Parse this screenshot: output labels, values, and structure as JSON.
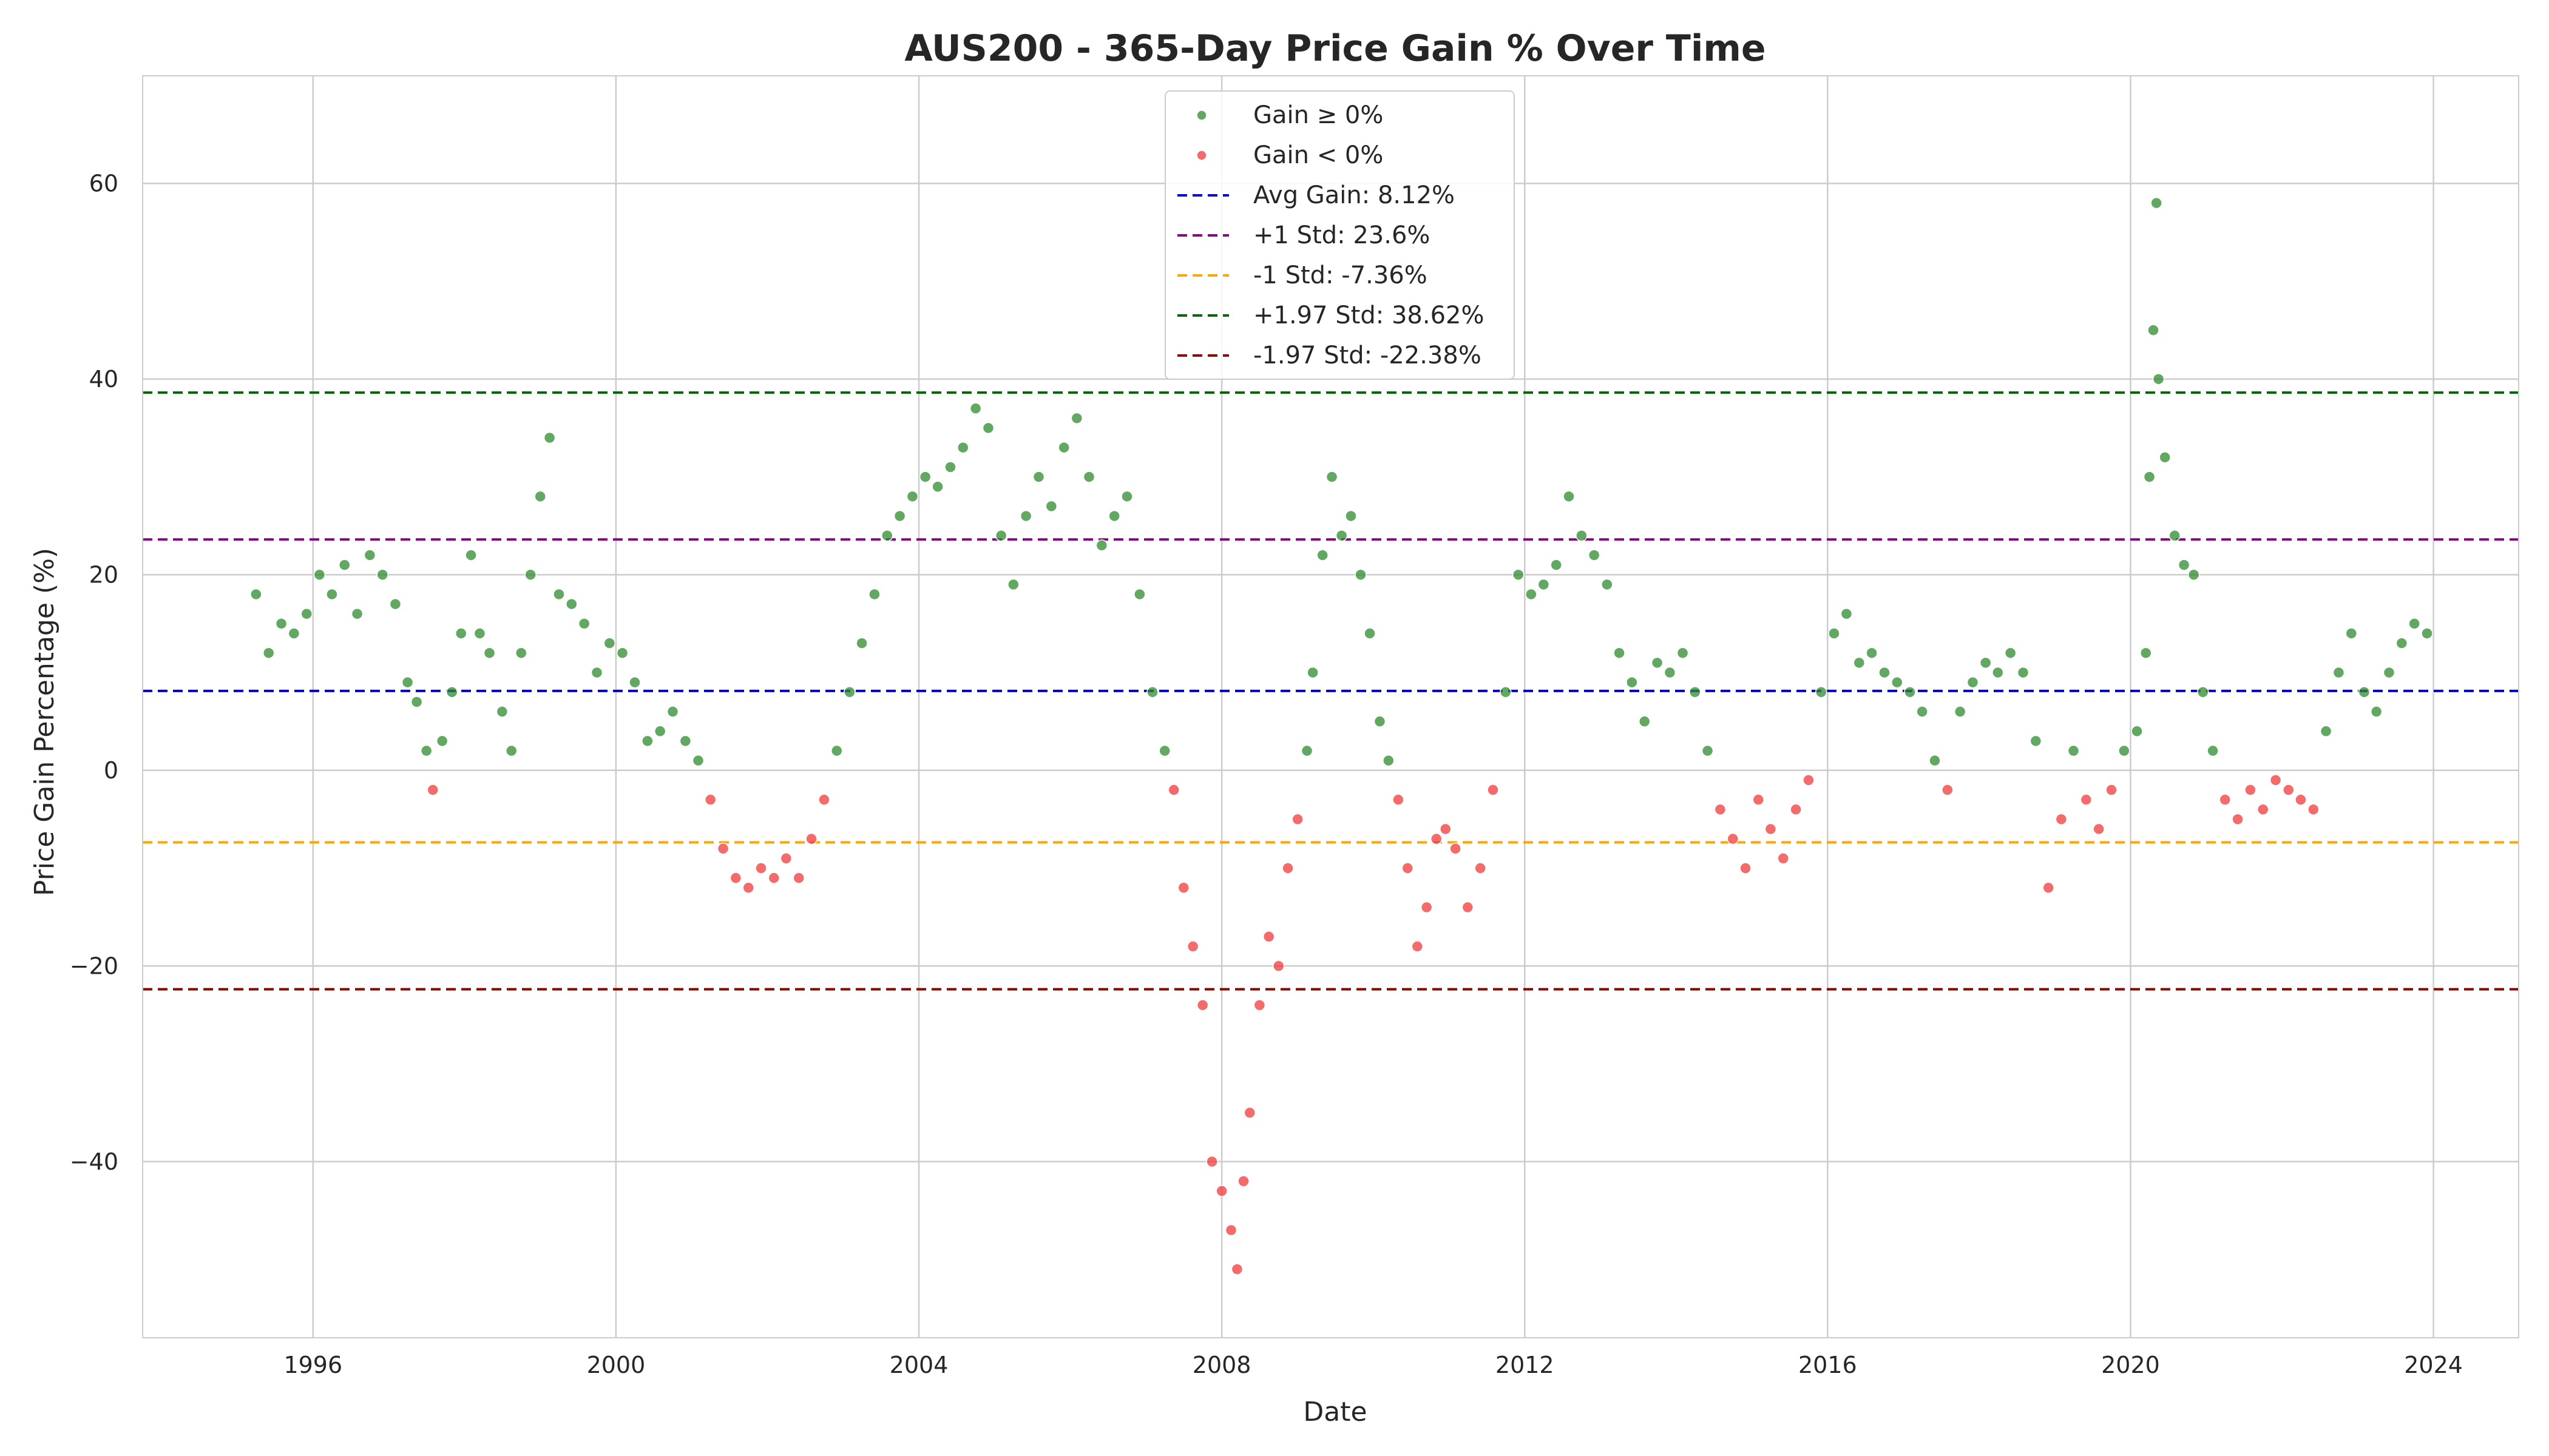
{
  "chart_data": {
    "type": "scatter",
    "title": "AUS200 - 365-Day Price Gain % Over Time",
    "xlabel": "Date",
    "ylabel": "Price Gain Percentage (%)",
    "xlim": [
      "1993-10-01",
      "2025-02-15"
    ],
    "ylim": [
      -58,
      71
    ],
    "x_ticks": [
      "1996",
      "2000",
      "2004",
      "2008",
      "2012",
      "2016",
      "2020",
      "2024"
    ],
    "y_ticks": [
      -40,
      -20,
      0,
      20,
      40,
      60
    ],
    "grid": true,
    "legend_position": "top-center",
    "series": [
      {
        "name": "Gain ≥ 0%",
        "color": "#2e8b2e",
        "marker": "point",
        "condition": "gain >= 0"
      },
      {
        "name": "Gain < 0%",
        "color": "#f03a3a",
        "marker": "point",
        "condition": "gain < 0"
      }
    ],
    "reference_lines": [
      {
        "name": "Avg Gain: 8.12%",
        "value": 8.12,
        "color": "#0000cc",
        "style": "dashed"
      },
      {
        "name": "+1 Std: 23.6%",
        "value": 23.6,
        "color": "#800080",
        "style": "dashed"
      },
      {
        "name": "-1 Std: -7.36%",
        "value": -7.36,
        "color": "#ffa500",
        "style": "dashed"
      },
      {
        "name": "+1.97 Std: 38.62%",
        "value": 38.62,
        "color": "#006400",
        "style": "dashed"
      },
      {
        "name": "-1.97 Std: -22.38%",
        "value": -22.38,
        "color": "#8b0000",
        "style": "dashed"
      }
    ],
    "data": [
      [
        "1995-04-01",
        18
      ],
      [
        "1995-06-01",
        12
      ],
      [
        "1995-08-01",
        15
      ],
      [
        "1995-10-01",
        14
      ],
      [
        "1995-12-01",
        16
      ],
      [
        "1996-02-01",
        20
      ],
      [
        "1996-04-01",
        18
      ],
      [
        "1996-06-01",
        21
      ],
      [
        "1996-08-01",
        16
      ],
      [
        "1996-10-01",
        22
      ],
      [
        "1996-12-01",
        20
      ],
      [
        "1997-02-01",
        17
      ],
      [
        "1997-04-01",
        9
      ],
      [
        "1997-05-15",
        7
      ],
      [
        "1997-07-01",
        2
      ],
      [
        "1997-08-01",
        -2
      ],
      [
        "1997-09-15",
        3
      ],
      [
        "1997-11-01",
        8
      ],
      [
        "1997-12-15",
        14
      ],
      [
        "1998-02-01",
        22
      ],
      [
        "1998-03-15",
        14
      ],
      [
        "1998-05-01",
        12
      ],
      [
        "1998-07-01",
        6
      ],
      [
        "1998-08-15",
        2
      ],
      [
        "1998-10-01",
        12
      ],
      [
        "1998-11-15",
        20
      ],
      [
        "1999-01-01",
        28
      ],
      [
        "1999-02-15",
        34
      ],
      [
        "1999-04-01",
        18
      ],
      [
        "1999-06-01",
        17
      ],
      [
        "1999-08-01",
        15
      ],
      [
        "1999-10-01",
        10
      ],
      [
        "1999-12-01",
        13
      ],
      [
        "2000-02-01",
        12
      ],
      [
        "2000-04-01",
        9
      ],
      [
        "2000-06-01",
        3
      ],
      [
        "2000-08-01",
        4
      ],
      [
        "2000-10-01",
        6
      ],
      [
        "2000-12-01",
        3
      ],
      [
        "2001-02-01",
        1
      ],
      [
        "2001-04-01",
        -3
      ],
      [
        "2001-06-01",
        -8
      ],
      [
        "2001-08-01",
        -11
      ],
      [
        "2001-10-01",
        -12
      ],
      [
        "2001-12-01",
        -10
      ],
      [
        "2002-02-01",
        -11
      ],
      [
        "2002-04-01",
        -9
      ],
      [
        "2002-06-01",
        -11
      ],
      [
        "2002-08-01",
        -7
      ],
      [
        "2002-10-01",
        -3
      ],
      [
        "2002-12-01",
        2
      ],
      [
        "2003-02-01",
        8
      ],
      [
        "2003-04-01",
        13
      ],
      [
        "2003-06-01",
        18
      ],
      [
        "2003-08-01",
        24
      ],
      [
        "2003-10-01",
        26
      ],
      [
        "2003-12-01",
        28
      ],
      [
        "2004-02-01",
        30
      ],
      [
        "2004-04-01",
        29
      ],
      [
        "2004-06-01",
        31
      ],
      [
        "2004-08-01",
        33
      ],
      [
        "2004-10-01",
        37
      ],
      [
        "2004-12-01",
        35
      ],
      [
        "2005-02-01",
        24
      ],
      [
        "2005-04-01",
        19
      ],
      [
        "2005-06-01",
        26
      ],
      [
        "2005-08-01",
        30
      ],
      [
        "2005-10-01",
        27
      ],
      [
        "2005-12-01",
        33
      ],
      [
        "2006-02-01",
        36
      ],
      [
        "2006-04-01",
        30
      ],
      [
        "2006-06-01",
        23
      ],
      [
        "2006-08-01",
        26
      ],
      [
        "2006-10-01",
        28
      ],
      [
        "2006-12-01",
        18
      ],
      [
        "2007-02-01",
        8
      ],
      [
        "2007-04-01",
        2
      ],
      [
        "2007-05-15",
        -2
      ],
      [
        "2007-07-01",
        -12
      ],
      [
        "2007-08-15",
        -18
      ],
      [
        "2007-10-01",
        -24
      ],
      [
        "2007-11-15",
        -40
      ],
      [
        "2008-01-01",
        -43
      ],
      [
        "2008-02-15",
        -47
      ],
      [
        "2008-03-15",
        -51
      ],
      [
        "2008-04-15",
        -42
      ],
      [
        "2008-05-15",
        -35
      ],
      [
        "2008-07-01",
        -24
      ],
      [
        "2008-08-15",
        -17
      ],
      [
        "2008-10-01",
        -20
      ],
      [
        "2008-11-15",
        -10
      ],
      [
        "2009-01-01",
        -5
      ],
      [
        "2009-02-15",
        2
      ],
      [
        "2009-03-15",
        10
      ],
      [
        "2009-05-01",
        22
      ],
      [
        "2009-06-15",
        30
      ],
      [
        "2009-08-01",
        24
      ],
      [
        "2009-09-15",
        26
      ],
      [
        "2009-11-01",
        20
      ],
      [
        "2009-12-15",
        14
      ],
      [
        "2010-02-01",
        5
      ],
      [
        "2010-03-15",
        1
      ],
      [
        "2010-05-01",
        -3
      ],
      [
        "2010-06-15",
        -10
      ],
      [
        "2010-08-01",
        -18
      ],
      [
        "2010-09-15",
        -14
      ],
      [
        "2010-11-01",
        -7
      ],
      [
        "2010-12-15",
        -6
      ],
      [
        "2011-02-01",
        -8
      ],
      [
        "2011-04-01",
        -14
      ],
      [
        "2011-06-01",
        -10
      ],
      [
        "2011-08-01",
        -2
      ],
      [
        "2011-10-01",
        8
      ],
      [
        "2011-12-01",
        20
      ],
      [
        "2012-02-01",
        18
      ],
      [
        "2012-04-01",
        19
      ],
      [
        "2012-06-01",
        21
      ],
      [
        "2012-08-01",
        28
      ],
      [
        "2012-10-01",
        24
      ],
      [
        "2012-12-01",
        22
      ],
      [
        "2013-02-01",
        19
      ],
      [
        "2013-04-01",
        12
      ],
      [
        "2013-06-01",
        9
      ],
      [
        "2013-08-01",
        5
      ],
      [
        "2013-10-01",
        11
      ],
      [
        "2013-12-01",
        10
      ],
      [
        "2014-02-01",
        12
      ],
      [
        "2014-04-01",
        8
      ],
      [
        "2014-06-01",
        2
      ],
      [
        "2014-08-01",
        -4
      ],
      [
        "2014-10-01",
        -7
      ],
      [
        "2014-12-01",
        -10
      ],
      [
        "2015-02-01",
        -3
      ],
      [
        "2015-04-01",
        -6
      ],
      [
        "2015-06-01",
        -9
      ],
      [
        "2015-08-01",
        -4
      ],
      [
        "2015-10-01",
        -1
      ],
      [
        "2015-12-01",
        8
      ],
      [
        "2016-02-01",
        14
      ],
      [
        "2016-04-01",
        16
      ],
      [
        "2016-06-01",
        11
      ],
      [
        "2016-08-01",
        12
      ],
      [
        "2016-10-01",
        10
      ],
      [
        "2016-12-01",
        9
      ],
      [
        "2017-02-01",
        8
      ],
      [
        "2017-04-01",
        6
      ],
      [
        "2017-06-01",
        1
      ],
      [
        "2017-08-01",
        -2
      ],
      [
        "2017-10-01",
        6
      ],
      [
        "2017-12-01",
        9
      ],
      [
        "2018-02-01",
        11
      ],
      [
        "2018-04-01",
        10
      ],
      [
        "2018-06-01",
        12
      ],
      [
        "2018-08-01",
        10
      ],
      [
        "2018-10-01",
        3
      ],
      [
        "2018-12-01",
        -12
      ],
      [
        "2019-02-01",
        -5
      ],
      [
        "2019-04-01",
        2
      ],
      [
        "2019-06-01",
        -3
      ],
      [
        "2019-08-01",
        -6
      ],
      [
        "2019-10-01",
        -2
      ],
      [
        "2019-12-01",
        2
      ],
      [
        "2020-02-01",
        4
      ],
      [
        "2020-03-15",
        12
      ],
      [
        "2020-04-01",
        30
      ],
      [
        "2020-04-20",
        45
      ],
      [
        "2020-05-05",
        58
      ],
      [
        "2020-05-15",
        40
      ],
      [
        "2020-06-15",
        32
      ],
      [
        "2020-08-01",
        24
      ],
      [
        "2020-09-15",
        21
      ],
      [
        "2020-11-01",
        20
      ],
      [
        "2020-12-15",
        8
      ],
      [
        "2021-02-01",
        2
      ],
      [
        "2021-04-01",
        -3
      ],
      [
        "2021-06-01",
        -5
      ],
      [
        "2021-08-01",
        -2
      ],
      [
        "2021-10-01",
        -4
      ],
      [
        "2021-12-01",
        -1
      ],
      [
        "2022-02-01",
        -2
      ],
      [
        "2022-04-01",
        -3
      ],
      [
        "2022-06-01",
        -4
      ],
      [
        "2022-08-01",
        4
      ],
      [
        "2022-10-01",
        10
      ],
      [
        "2022-12-01",
        14
      ],
      [
        "2023-02-01",
        8
      ],
      [
        "2023-04-01",
        6
      ],
      [
        "2023-06-01",
        10
      ],
      [
        "2023-08-01",
        13
      ],
      [
        "2023-10-01",
        15
      ],
      [
        "2023-12-01",
        14
      ]
    ]
  }
}
